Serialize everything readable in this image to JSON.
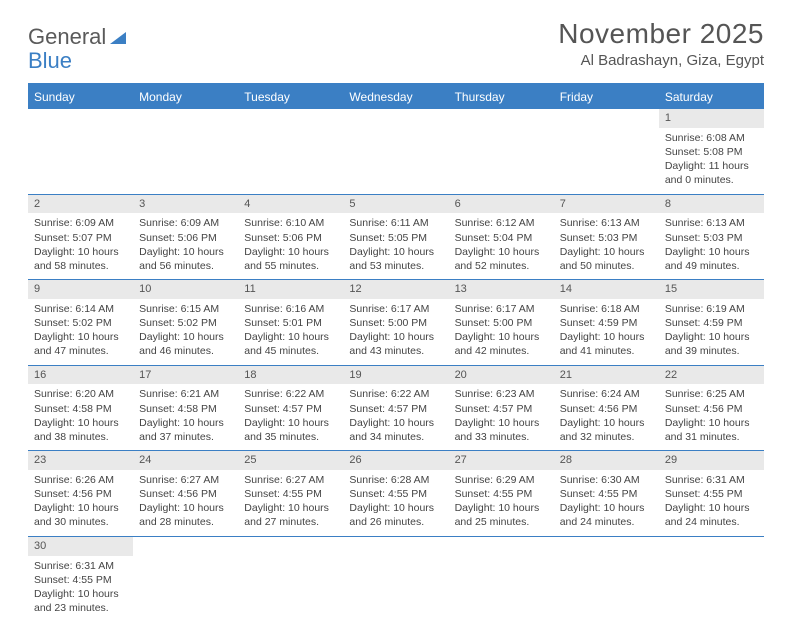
{
  "logo": {
    "text1": "General",
    "text2": "Blue"
  },
  "title": "November 2025",
  "location": "Al Badrashayn, Giza, Egypt",
  "colors": {
    "header_bg": "#3b7fc4",
    "header_text": "#ffffff",
    "daynum_bg": "#e9e9e9",
    "cell_border": "#3b7fc4",
    "body_text": "#444444",
    "logo_gray": "#5a5a5a",
    "logo_blue": "#3b7fc4"
  },
  "weekdays": [
    "Sunday",
    "Monday",
    "Tuesday",
    "Wednesday",
    "Thursday",
    "Friday",
    "Saturday"
  ],
  "cells": [
    {
      "day": "",
      "sunrise": "",
      "sunset": "",
      "daylight": ""
    },
    {
      "day": "",
      "sunrise": "",
      "sunset": "",
      "daylight": ""
    },
    {
      "day": "",
      "sunrise": "",
      "sunset": "",
      "daylight": ""
    },
    {
      "day": "",
      "sunrise": "",
      "sunset": "",
      "daylight": ""
    },
    {
      "day": "",
      "sunrise": "",
      "sunset": "",
      "daylight": ""
    },
    {
      "day": "",
      "sunrise": "",
      "sunset": "",
      "daylight": ""
    },
    {
      "day": "1",
      "sunrise": "Sunrise: 6:08 AM",
      "sunset": "Sunset: 5:08 PM",
      "daylight": "Daylight: 11 hours and 0 minutes."
    },
    {
      "day": "2",
      "sunrise": "Sunrise: 6:09 AM",
      "sunset": "Sunset: 5:07 PM",
      "daylight": "Daylight: 10 hours and 58 minutes."
    },
    {
      "day": "3",
      "sunrise": "Sunrise: 6:09 AM",
      "sunset": "Sunset: 5:06 PM",
      "daylight": "Daylight: 10 hours and 56 minutes."
    },
    {
      "day": "4",
      "sunrise": "Sunrise: 6:10 AM",
      "sunset": "Sunset: 5:06 PM",
      "daylight": "Daylight: 10 hours and 55 minutes."
    },
    {
      "day": "5",
      "sunrise": "Sunrise: 6:11 AM",
      "sunset": "Sunset: 5:05 PM",
      "daylight": "Daylight: 10 hours and 53 minutes."
    },
    {
      "day": "6",
      "sunrise": "Sunrise: 6:12 AM",
      "sunset": "Sunset: 5:04 PM",
      "daylight": "Daylight: 10 hours and 52 minutes."
    },
    {
      "day": "7",
      "sunrise": "Sunrise: 6:13 AM",
      "sunset": "Sunset: 5:03 PM",
      "daylight": "Daylight: 10 hours and 50 minutes."
    },
    {
      "day": "8",
      "sunrise": "Sunrise: 6:13 AM",
      "sunset": "Sunset: 5:03 PM",
      "daylight": "Daylight: 10 hours and 49 minutes."
    },
    {
      "day": "9",
      "sunrise": "Sunrise: 6:14 AM",
      "sunset": "Sunset: 5:02 PM",
      "daylight": "Daylight: 10 hours and 47 minutes."
    },
    {
      "day": "10",
      "sunrise": "Sunrise: 6:15 AM",
      "sunset": "Sunset: 5:02 PM",
      "daylight": "Daylight: 10 hours and 46 minutes."
    },
    {
      "day": "11",
      "sunrise": "Sunrise: 6:16 AM",
      "sunset": "Sunset: 5:01 PM",
      "daylight": "Daylight: 10 hours and 45 minutes."
    },
    {
      "day": "12",
      "sunrise": "Sunrise: 6:17 AM",
      "sunset": "Sunset: 5:00 PM",
      "daylight": "Daylight: 10 hours and 43 minutes."
    },
    {
      "day": "13",
      "sunrise": "Sunrise: 6:17 AM",
      "sunset": "Sunset: 5:00 PM",
      "daylight": "Daylight: 10 hours and 42 minutes."
    },
    {
      "day": "14",
      "sunrise": "Sunrise: 6:18 AM",
      "sunset": "Sunset: 4:59 PM",
      "daylight": "Daylight: 10 hours and 41 minutes."
    },
    {
      "day": "15",
      "sunrise": "Sunrise: 6:19 AM",
      "sunset": "Sunset: 4:59 PM",
      "daylight": "Daylight: 10 hours and 39 minutes."
    },
    {
      "day": "16",
      "sunrise": "Sunrise: 6:20 AM",
      "sunset": "Sunset: 4:58 PM",
      "daylight": "Daylight: 10 hours and 38 minutes."
    },
    {
      "day": "17",
      "sunrise": "Sunrise: 6:21 AM",
      "sunset": "Sunset: 4:58 PM",
      "daylight": "Daylight: 10 hours and 37 minutes."
    },
    {
      "day": "18",
      "sunrise": "Sunrise: 6:22 AM",
      "sunset": "Sunset: 4:57 PM",
      "daylight": "Daylight: 10 hours and 35 minutes."
    },
    {
      "day": "19",
      "sunrise": "Sunrise: 6:22 AM",
      "sunset": "Sunset: 4:57 PM",
      "daylight": "Daylight: 10 hours and 34 minutes."
    },
    {
      "day": "20",
      "sunrise": "Sunrise: 6:23 AM",
      "sunset": "Sunset: 4:57 PM",
      "daylight": "Daylight: 10 hours and 33 minutes."
    },
    {
      "day": "21",
      "sunrise": "Sunrise: 6:24 AM",
      "sunset": "Sunset: 4:56 PM",
      "daylight": "Daylight: 10 hours and 32 minutes."
    },
    {
      "day": "22",
      "sunrise": "Sunrise: 6:25 AM",
      "sunset": "Sunset: 4:56 PM",
      "daylight": "Daylight: 10 hours and 31 minutes."
    },
    {
      "day": "23",
      "sunrise": "Sunrise: 6:26 AM",
      "sunset": "Sunset: 4:56 PM",
      "daylight": "Daylight: 10 hours and 30 minutes."
    },
    {
      "day": "24",
      "sunrise": "Sunrise: 6:27 AM",
      "sunset": "Sunset: 4:56 PM",
      "daylight": "Daylight: 10 hours and 28 minutes."
    },
    {
      "day": "25",
      "sunrise": "Sunrise: 6:27 AM",
      "sunset": "Sunset: 4:55 PM",
      "daylight": "Daylight: 10 hours and 27 minutes."
    },
    {
      "day": "26",
      "sunrise": "Sunrise: 6:28 AM",
      "sunset": "Sunset: 4:55 PM",
      "daylight": "Daylight: 10 hours and 26 minutes."
    },
    {
      "day": "27",
      "sunrise": "Sunrise: 6:29 AM",
      "sunset": "Sunset: 4:55 PM",
      "daylight": "Daylight: 10 hours and 25 minutes."
    },
    {
      "day": "28",
      "sunrise": "Sunrise: 6:30 AM",
      "sunset": "Sunset: 4:55 PM",
      "daylight": "Daylight: 10 hours and 24 minutes."
    },
    {
      "day": "29",
      "sunrise": "Sunrise: 6:31 AM",
      "sunset": "Sunset: 4:55 PM",
      "daylight": "Daylight: 10 hours and 24 minutes."
    },
    {
      "day": "30",
      "sunrise": "Sunrise: 6:31 AM",
      "sunset": "Sunset: 4:55 PM",
      "daylight": "Daylight: 10 hours and 23 minutes."
    },
    {
      "day": "",
      "sunrise": "",
      "sunset": "",
      "daylight": ""
    },
    {
      "day": "",
      "sunrise": "",
      "sunset": "",
      "daylight": ""
    },
    {
      "day": "",
      "sunrise": "",
      "sunset": "",
      "daylight": ""
    },
    {
      "day": "",
      "sunrise": "",
      "sunset": "",
      "daylight": ""
    },
    {
      "day": "",
      "sunrise": "",
      "sunset": "",
      "daylight": ""
    },
    {
      "day": "",
      "sunrise": "",
      "sunset": "",
      "daylight": ""
    }
  ]
}
